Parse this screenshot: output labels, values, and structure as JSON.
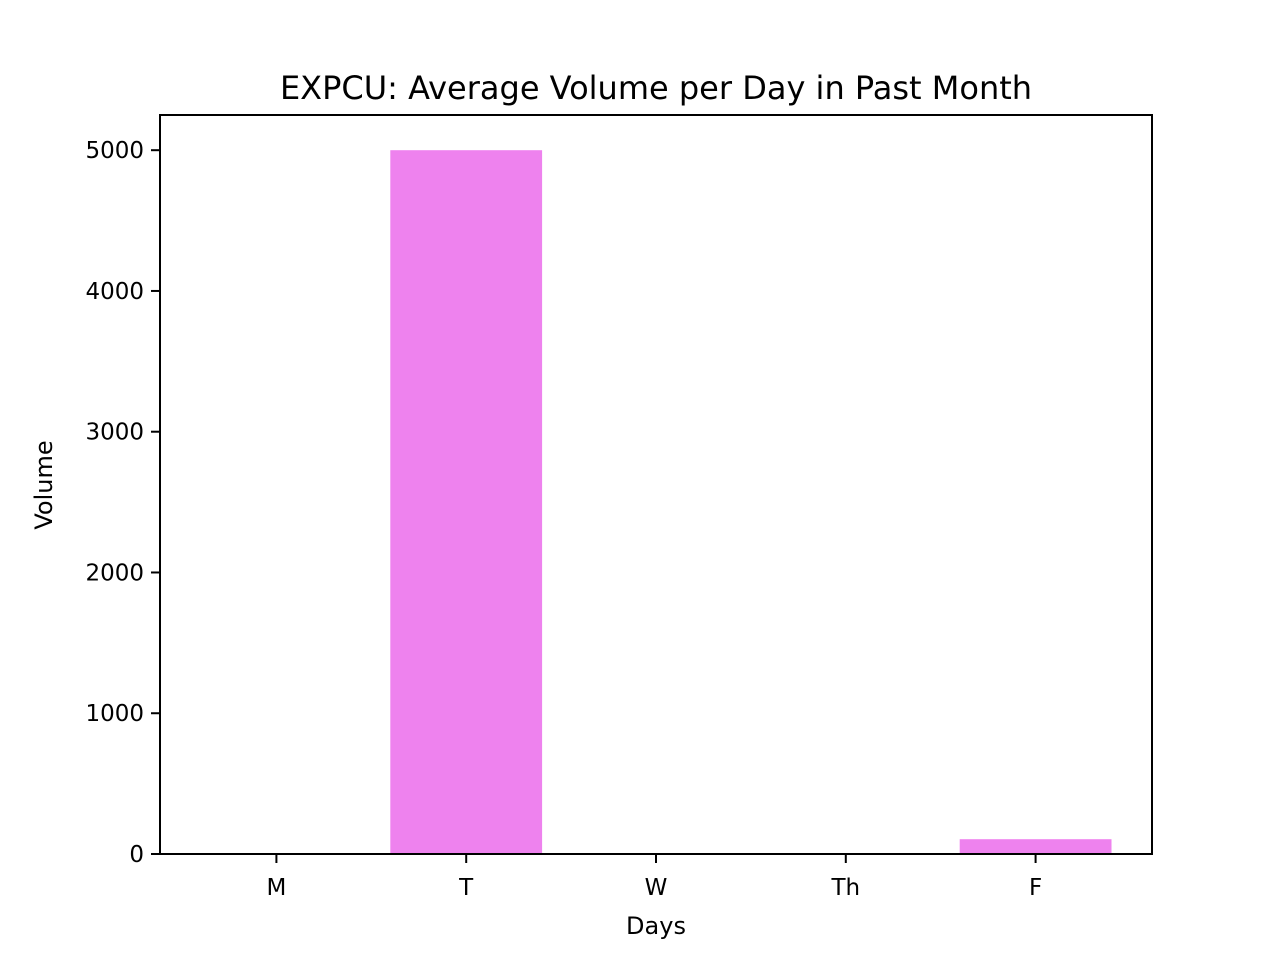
{
  "chart_data": {
    "type": "bar",
    "title": "EXPCU: Average Volume per Day in Past Month",
    "xlabel": "Days",
    "ylabel": "Volume",
    "categories": [
      "M",
      "T",
      "W",
      "Th",
      "F"
    ],
    "values": [
      0,
      5000,
      0,
      0,
      105
    ],
    "ylim": [
      0,
      5250
    ],
    "yticks": [
      0,
      1000,
      2000,
      3000,
      4000,
      5000
    ],
    "bar_color": "#ee82ee",
    "grid": false,
    "legend": "none"
  }
}
